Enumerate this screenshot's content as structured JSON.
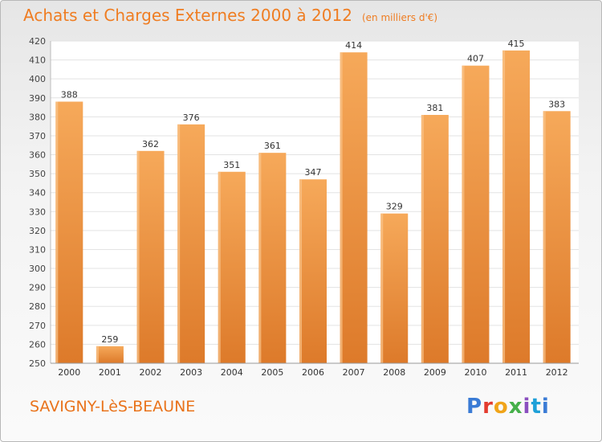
{
  "title": "Achats et Charges Externes 2000 à 2012",
  "unit_note": "(en milliers d'€)",
  "location": "SAVIGNY-LèS-BEAUNE",
  "logo_text": "Proxiti",
  "colors": {
    "bar_top": "#f6a95a",
    "bar_bottom": "#dd7a2a",
    "bar_side": "#f9c48c",
    "plot_bg": "#ffffff",
    "grid": "#e3e3e3",
    "accent": "#ef7d22"
  },
  "chart_data": {
    "type": "bar",
    "title": "Achats et Charges Externes 2000 à 2012",
    "categories": [
      "2000",
      "2001",
      "2002",
      "2003",
      "2004",
      "2005",
      "2006",
      "2007",
      "2008",
      "2009",
      "2010",
      "2011",
      "2012"
    ],
    "values": [
      388,
      259,
      362,
      376,
      351,
      361,
      347,
      414,
      329,
      381,
      407,
      415,
      383
    ],
    "ylim": [
      250,
      420
    ],
    "yticks": [
      250,
      260,
      270,
      280,
      290,
      300,
      310,
      320,
      330,
      340,
      350,
      360,
      370,
      380,
      390,
      400,
      410,
      420
    ],
    "xlabel": "",
    "ylabel": "",
    "grid": true,
    "legend": "none"
  }
}
